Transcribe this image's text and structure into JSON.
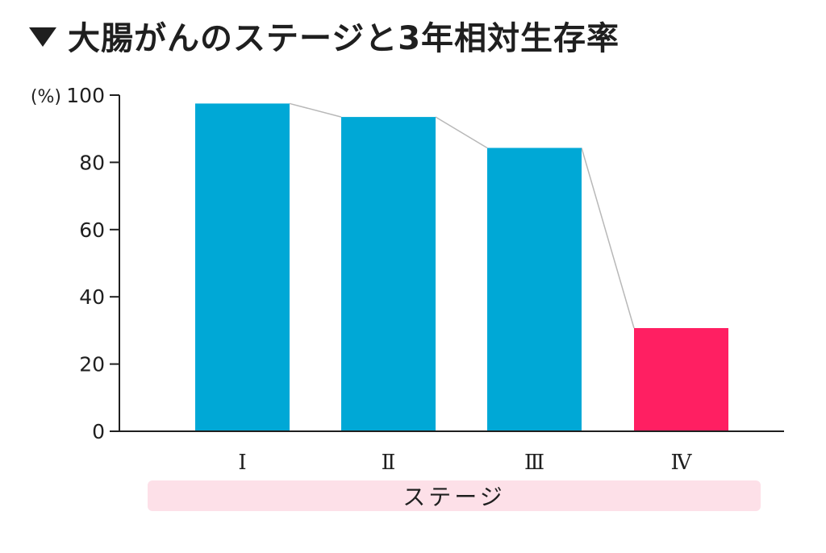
{
  "title": "大腸がんのステージと3年相対生存率",
  "chart_data": {
    "type": "bar",
    "title": "大腸がんのステージと3年相対生存率",
    "ylabel": "(%)",
    "xlabel": "ステージ",
    "ylim": [
      0,
      100
    ],
    "yticks": [
      "0",
      "20",
      "40",
      "60",
      "80",
      "100"
    ],
    "categories": [
      "Ⅰ",
      "Ⅱ",
      "Ⅲ",
      "Ⅳ"
    ],
    "values": [
      97.5,
      93.5,
      84.3,
      30.7
    ],
    "bar_colors": [
      "#00a8d6",
      "#00a8d6",
      "#00a8d6",
      "#ff1f62"
    ],
    "connector_color": "#b8b8b8",
    "grid": false
  },
  "colors": {
    "stage_band_bg": "#fde0e8",
    "axis": "#1f1f1f"
  }
}
